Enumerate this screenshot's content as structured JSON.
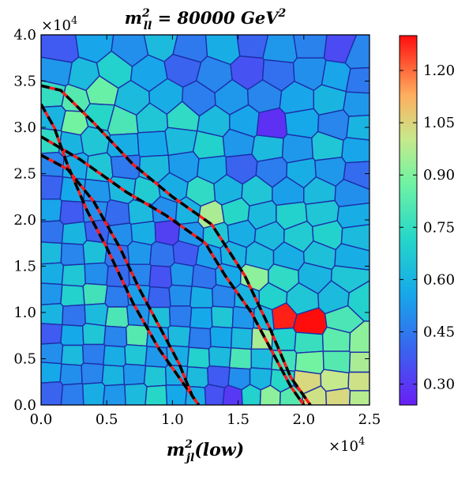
{
  "chart_data": {
    "type": "heatmap",
    "title": "m_{ll}^2 = 80000 GeV^2",
    "title_parts": {
      "m": "m",
      "sup": "2",
      "sub": "ll",
      "rest": " = 80000 ",
      "unit": "GeV",
      "unit_sup": "2"
    },
    "xlabel_parts": {
      "m": "m",
      "sup": "2",
      "sub": "jl",
      "rest": "(low)"
    },
    "x_multiplier": {
      "base": "×10",
      "exp": "4"
    },
    "y_multiplier": {
      "base": "×10",
      "exp": "4"
    },
    "xlim": [
      0,
      25000
    ],
    "ylim": [
      0,
      40000
    ],
    "x_ticks": [
      0,
      5000,
      10000,
      15000,
      20000,
      25000
    ],
    "x_tick_labels": [
      "0.0",
      "0.5",
      "1.0",
      "1.5",
      "2.0",
      "2.5"
    ],
    "y_ticks": [
      0,
      5000,
      10000,
      15000,
      20000,
      25000,
      30000,
      35000,
      40000
    ],
    "y_tick_labels": [
      "0.0",
      "0.5",
      "1.0",
      "1.5",
      "2.0",
      "2.5",
      "3.0",
      "3.5",
      "4.0"
    ],
    "colorbar": {
      "range": [
        0.24,
        1.3
      ],
      "ticks": [
        0.3,
        0.45,
        0.6,
        0.75,
        0.9,
        1.05,
        1.2
      ],
      "tick_labels": [
        "0.30",
        "0.45",
        "0.60",
        "0.75",
        "0.90",
        "1.05",
        "1.20"
      ]
    },
    "cell_edge_color": "#1c2fa8",
    "contours": [
      {
        "name": "outer",
        "points": [
          [
            0,
            34500
          ],
          [
            1500,
            34000
          ],
          [
            4000,
            30500
          ],
          [
            7000,
            26000
          ],
          [
            10000,
            22500
          ],
          [
            13000,
            19500
          ],
          [
            15500,
            14000
          ],
          [
            17500,
            8000
          ],
          [
            19000,
            3000
          ],
          [
            20500,
            0
          ]
        ]
      },
      {
        "name": "outer-inner",
        "points": [
          [
            0,
            29000
          ],
          [
            3000,
            26500
          ],
          [
            6500,
            23000
          ],
          [
            9500,
            20500
          ],
          [
            12500,
            17500
          ],
          [
            14000,
            14000
          ],
          [
            16000,
            10000
          ],
          [
            17500,
            6000
          ],
          [
            19000,
            2000
          ],
          [
            20000,
            0
          ]
        ]
      },
      {
        "name": "inner",
        "points": [
          [
            0,
            32500
          ],
          [
            1000,
            30000
          ],
          [
            2000,
            26000
          ],
          [
            3500,
            21000
          ],
          [
            5000,
            17000
          ],
          [
            7000,
            11000
          ],
          [
            9000,
            6000
          ],
          [
            11000,
            2000
          ],
          [
            12000,
            0
          ]
        ]
      },
      {
        "name": "inner-inner",
        "points": [
          [
            0,
            27000
          ],
          [
            2000,
            25500
          ],
          [
            4000,
            22000
          ],
          [
            6000,
            17000
          ],
          [
            7500,
            12500
          ],
          [
            9000,
            8500
          ],
          [
            10500,
            4500
          ],
          [
            11500,
            1000
          ],
          [
            12000,
            0
          ]
        ]
      }
    ],
    "contour_styles": {
      "solid_color": "#ff1a1a",
      "dashed_color": "#000000"
    },
    "cells": [
      [
        1500,
        38500,
        0.38
      ],
      [
        4000,
        39000,
        0.55
      ],
      [
        6800,
        38500,
        0.5
      ],
      [
        9200,
        39200,
        0.62
      ],
      [
        11200,
        38500,
        0.45
      ],
      [
        14000,
        38800,
        0.58
      ],
      [
        16000,
        39200,
        0.4
      ],
      [
        18200,
        38500,
        0.52
      ],
      [
        20500,
        39000,
        0.47
      ],
      [
        22800,
        38600,
        0.34
      ],
      [
        24200,
        37800,
        0.48
      ],
      [
        1200,
        36000,
        0.52
      ],
      [
        3200,
        35500,
        0.62
      ],
      [
        5600,
        36200,
        0.7
      ],
      [
        8200,
        35800,
        0.55
      ],
      [
        10800,
        36500,
        0.4
      ],
      [
        13200,
        35600,
        0.48
      ],
      [
        15800,
        36000,
        0.36
      ],
      [
        18000,
        35800,
        0.43
      ],
      [
        20500,
        36000,
        0.5
      ],
      [
        22500,
        35500,
        0.55
      ],
      [
        24300,
        35000,
        0.45
      ],
      [
        800,
        33500,
        0.75
      ],
      [
        2600,
        33000,
        0.82
      ],
      [
        4500,
        33800,
        0.86
      ],
      [
        7000,
        33000,
        0.62
      ],
      [
        9500,
        33200,
        0.58
      ],
      [
        12000,
        33000,
        0.46
      ],
      [
        14500,
        33200,
        0.52
      ],
      [
        17000,
        33400,
        0.48
      ],
      [
        19500,
        33000,
        0.55
      ],
      [
        22000,
        33000,
        0.6
      ],
      [
        24200,
        32500,
        0.52
      ],
      [
        900,
        31000,
        0.6
      ],
      [
        2500,
        30500,
        0.88
      ],
      [
        4400,
        31200,
        0.72
      ],
      [
        6200,
        30500,
        0.8
      ],
      [
        8400,
        30800,
        0.66
      ],
      [
        10800,
        31000,
        0.74
      ],
      [
        13200,
        30500,
        0.62
      ],
      [
        15500,
        30500,
        0.55
      ],
      [
        17500,
        30200,
        0.28
      ],
      [
        19800,
        30500,
        0.56
      ],
      [
        22400,
        30300,
        0.48
      ],
      [
        24300,
        30000,
        0.6
      ],
      [
        700,
        28500,
        0.74
      ],
      [
        2200,
        28200,
        0.6
      ],
      [
        4000,
        28600,
        0.66
      ],
      [
        6300,
        28000,
        0.58
      ],
      [
        8500,
        28200,
        0.56
      ],
      [
        10600,
        28600,
        0.62
      ],
      [
        12800,
        28000,
        0.7
      ],
      [
        15000,
        28300,
        0.52
      ],
      [
        17300,
        27800,
        0.62
      ],
      [
        19500,
        27600,
        0.52
      ],
      [
        21800,
        27800,
        0.66
      ],
      [
        24100,
        27500,
        0.55
      ],
      [
        800,
        26000,
        0.48
      ],
      [
        2600,
        25800,
        0.58
      ],
      [
        4400,
        25500,
        0.66
      ],
      [
        6400,
        25800,
        0.45
      ],
      [
        8600,
        25600,
        0.62
      ],
      [
        10900,
        25800,
        0.53
      ],
      [
        13000,
        25500,
        0.58
      ],
      [
        15200,
        25600,
        0.4
      ],
      [
        17600,
        25300,
        0.46
      ],
      [
        19800,
        25200,
        0.58
      ],
      [
        22000,
        25400,
        0.52
      ],
      [
        24200,
        25000,
        0.42
      ],
      [
        700,
        23500,
        0.4
      ],
      [
        2400,
        23200,
        0.56
      ],
      [
        4200,
        23000,
        0.52
      ],
      [
        6200,
        23300,
        0.62
      ],
      [
        8000,
        23000,
        0.68
      ],
      [
        10000,
        23400,
        0.58
      ],
      [
        12200,
        23000,
        0.74
      ],
      [
        14200,
        23200,
        0.6
      ],
      [
        16400,
        23000,
        0.66
      ],
      [
        18800,
        23000,
        0.54
      ],
      [
        21200,
        23000,
        0.62
      ],
      [
        23600,
        22800,
        0.5
      ],
      [
        700,
        21000,
        0.55
      ],
      [
        2300,
        20800,
        0.38
      ],
      [
        4100,
        21000,
        0.5
      ],
      [
        5800,
        20600,
        0.42
      ],
      [
        7600,
        20800,
        0.62
      ],
      [
        9400,
        21000,
        0.5
      ],
      [
        11200,
        20800,
        0.6
      ],
      [
        12900,
        20400,
        0.96
      ],
      [
        14800,
        20800,
        0.72
      ],
      [
        16800,
        20500,
        0.62
      ],
      [
        19000,
        20500,
        0.7
      ],
      [
        21400,
        20800,
        0.66
      ],
      [
        23800,
        20400,
        0.58
      ],
      [
        800,
        18700,
        0.44
      ],
      [
        2500,
        18500,
        0.6
      ],
      [
        4300,
        18800,
        0.4
      ],
      [
        6000,
        18400,
        0.5
      ],
      [
        7800,
        18600,
        0.58
      ],
      [
        9600,
        18700,
        0.32
      ],
      [
        11400,
        18500,
        0.52
      ],
      [
        13300,
        18400,
        0.66
      ],
      [
        15200,
        18600,
        0.58
      ],
      [
        17400,
        18300,
        0.62
      ],
      [
        19600,
        18200,
        0.68
      ],
      [
        21800,
        18400,
        0.7
      ],
      [
        24000,
        18200,
        0.62
      ],
      [
        700,
        16400,
        0.62
      ],
      [
        2400,
        16300,
        0.48
      ],
      [
        4100,
        16500,
        0.64
      ],
      [
        5800,
        16200,
        0.44
      ],
      [
        7500,
        16400,
        0.52
      ],
      [
        9200,
        16200,
        0.44
      ],
      [
        11000,
        16400,
        0.38
      ],
      [
        12800,
        16000,
        0.54
      ],
      [
        14600,
        16200,
        0.6
      ],
      [
        16600,
        16000,
        0.62
      ],
      [
        18800,
        16000,
        0.58
      ],
      [
        21200,
        16200,
        0.64
      ],
      [
        23600,
        16000,
        0.58
      ],
      [
        800,
        14200,
        0.58
      ],
      [
        2500,
        14000,
        0.66
      ],
      [
        4200,
        14100,
        0.5
      ],
      [
        5900,
        13900,
        0.42
      ],
      [
        7500,
        14000,
        0.48
      ],
      [
        9100,
        13800,
        0.36
      ],
      [
        10700,
        14000,
        0.52
      ],
      [
        12400,
        13800,
        0.44
      ],
      [
        14200,
        13900,
        0.56
      ],
      [
        16200,
        13800,
        0.92
      ],
      [
        18400,
        13800,
        0.74
      ],
      [
        20800,
        13900,
        0.6
      ],
      [
        23400,
        13700,
        0.66
      ],
      [
        700,
        12000,
        0.52
      ],
      [
        2400,
        11800,
        0.7
      ],
      [
        4100,
        12000,
        0.78
      ],
      [
        5800,
        11700,
        0.46
      ],
      [
        7400,
        11900,
        0.54
      ],
      [
        9000,
        11600,
        0.4
      ],
      [
        10600,
        11800,
        0.5
      ],
      [
        12200,
        11600,
        0.58
      ],
      [
        13900,
        11700,
        0.48
      ],
      [
        15600,
        11600,
        0.6
      ],
      [
        17600,
        11600,
        0.7
      ],
      [
        19800,
        11400,
        0.66
      ],
      [
        22400,
        11600,
        0.62
      ],
      [
        24400,
        11300,
        0.7
      ],
      [
        800,
        9800,
        0.6
      ],
      [
        2500,
        9700,
        0.44
      ],
      [
        4200,
        9800,
        0.62
      ],
      [
        5800,
        9500,
        0.8
      ],
      [
        7400,
        9700,
        0.52
      ],
      [
        9000,
        9500,
        0.64
      ],
      [
        10600,
        9600,
        0.46
      ],
      [
        12200,
        9400,
        0.56
      ],
      [
        13800,
        9500,
        0.66
      ],
      [
        15400,
        9400,
        0.52
      ],
      [
        17000,
        9300,
        0.62
      ],
      [
        18300,
        9500,
        1.28
      ],
      [
        20400,
        8700,
        1.3
      ],
      [
        23000,
        9200,
        0.8
      ],
      [
        700,
        7700,
        0.38
      ],
      [
        2400,
        7500,
        0.56
      ],
      [
        4000,
        7600,
        0.66
      ],
      [
        5700,
        7400,
        0.48
      ],
      [
        7300,
        7500,
        0.82
      ],
      [
        8900,
        7300,
        0.56
      ],
      [
        10500,
        7400,
        0.62
      ],
      [
        12100,
        7200,
        0.46
      ],
      [
        13700,
        7300,
        0.56
      ],
      [
        15300,
        7200,
        0.62
      ],
      [
        16800,
        7100,
        0.96
      ],
      [
        18400,
        7000,
        0.7
      ],
      [
        20300,
        6800,
        0.76
      ],
      [
        22600,
        6900,
        0.84
      ],
      [
        24400,
        6800,
        0.92
      ],
      [
        800,
        5600,
        0.5
      ],
      [
        2400,
        5400,
        0.62
      ],
      [
        4000,
        5500,
        0.46
      ],
      [
        5600,
        5300,
        0.58
      ],
      [
        7200,
        5400,
        0.66
      ],
      [
        8800,
        5200,
        0.52
      ],
      [
        10400,
        5300,
        0.58
      ],
      [
        12000,
        5100,
        0.7
      ],
      [
        13600,
        5200,
        0.62
      ],
      [
        15200,
        5000,
        0.8
      ],
      [
        16800,
        5000,
        0.62
      ],
      [
        18400,
        4800,
        0.78
      ],
      [
        20400,
        4600,
        0.88
      ],
      [
        22600,
        4700,
        0.82
      ],
      [
        24400,
        4600,
        0.96
      ],
      [
        700,
        3500,
        0.56
      ],
      [
        2300,
        3300,
        0.5
      ],
      [
        3900,
        3400,
        0.48
      ],
      [
        5500,
        3200,
        0.6
      ],
      [
        7100,
        3300,
        0.52
      ],
      [
        8700,
        3100,
        0.66
      ],
      [
        10300,
        3200,
        0.58
      ],
      [
        11900,
        3000,
        0.62
      ],
      [
        13500,
        3100,
        0.38
      ],
      [
        15100,
        2900,
        0.5
      ],
      [
        16700,
        2900,
        0.6
      ],
      [
        18300,
        2700,
        0.72
      ],
      [
        20200,
        2500,
        1.04
      ],
      [
        22400,
        2600,
        1.0
      ],
      [
        24400,
        2500,
        1.02
      ],
      [
        800,
        1400,
        0.4
      ],
      [
        2400,
        1200,
        0.46
      ],
      [
        4000,
        1300,
        0.58
      ],
      [
        5600,
        1100,
        0.52
      ],
      [
        7200,
        1200,
        0.62
      ],
      [
        8800,
        1000,
        0.72
      ],
      [
        10300,
        1100,
        0.56
      ],
      [
        11800,
        900,
        0.58
      ],
      [
        13200,
        1000,
        0.36
      ],
      [
        14600,
        800,
        0.3
      ],
      [
        16000,
        900,
        0.7
      ],
      [
        17400,
        800,
        0.92
      ],
      [
        19000,
        700,
        0.82
      ],
      [
        20800,
        600,
        1.02
      ],
      [
        22600,
        700,
        1.04
      ],
      [
        24400,
        600,
        0.98
      ]
    ]
  }
}
